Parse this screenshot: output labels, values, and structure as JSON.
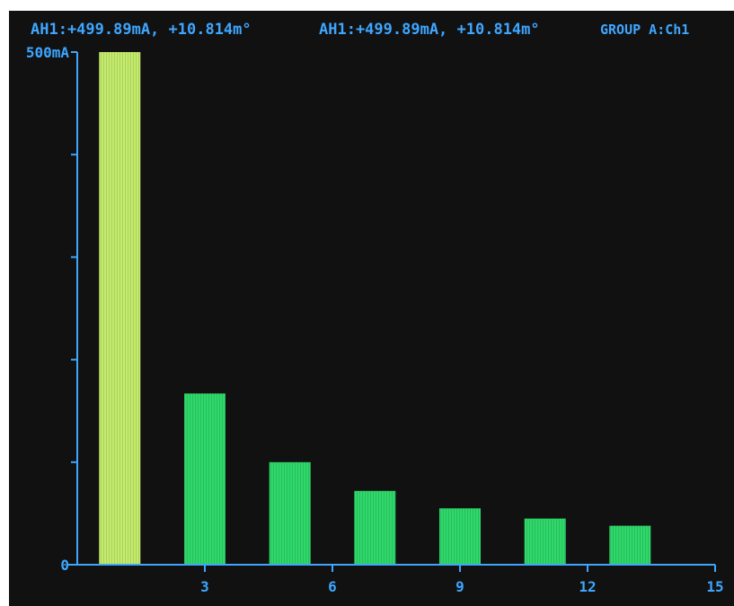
{
  "header": {
    "readout_1": "AH1:+499.89mA, +10.814m°",
    "readout_2": "AH1:+499.89mA, +10.814m°",
    "group_label": "GROUP A:Ch1"
  },
  "colors": {
    "background": "#111111",
    "axis": "#3ea6ff",
    "text": "#3ea6ff",
    "fundamental_bar": "#c4ec6c",
    "harmonic_bar": "#2fd86a"
  },
  "chart_data": {
    "type": "bar",
    "title": "",
    "xlabel": "",
    "ylabel": "",
    "x": [
      1,
      3,
      5,
      7,
      9,
      11,
      13
    ],
    "values": [
      500,
      167,
      100,
      72,
      55,
      45,
      38
    ],
    "unit": "mA",
    "xlim": [
      0,
      15
    ],
    "ylim": [
      0,
      500
    ],
    "x_ticks": [
      3,
      6,
      9,
      12,
      15
    ],
    "y_ticks": [
      0,
      100,
      200,
      300,
      400,
      500
    ],
    "y_tick_labels": {
      "0": "0",
      "500": "500mA"
    },
    "grid": false,
    "legend": "none"
  }
}
